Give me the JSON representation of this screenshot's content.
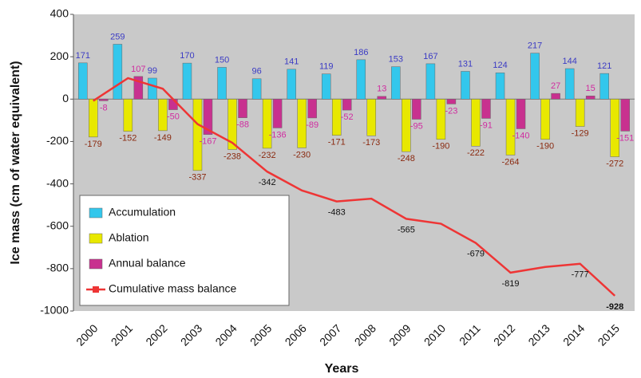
{
  "chart_data": {
    "type": "bar",
    "xlabel": "Years",
    "ylabel": "Ice mass (cm of water equivalent)",
    "categories": [
      "2000",
      "2001",
      "2002",
      "2003",
      "2004",
      "2005",
      "2006",
      "2007",
      "2008",
      "2009",
      "2010",
      "2011",
      "2012",
      "2013",
      "2014",
      "2015"
    ],
    "ylim": [
      -1000,
      400
    ],
    "yticks": [
      -1000,
      -800,
      -600,
      -400,
      -200,
      0,
      200,
      400
    ],
    "legend": "lower left",
    "series": [
      {
        "name": "Accumulation",
        "type": "bar",
        "color": "#33c7ec",
        "values": [
          171,
          259,
          99,
          170,
          150,
          96,
          141,
          119,
          186,
          153,
          167,
          131,
          124,
          217,
          144,
          121
        ]
      },
      {
        "name": "Ablation",
        "type": "bar",
        "color": "#e8e800",
        "values": [
          -179,
          -152,
          -149,
          -337,
          -238,
          -232,
          -230,
          -171,
          -173,
          -248,
          -190,
          -222,
          -264,
          -190,
          -129,
          -272
        ]
      },
      {
        "name": "Annual balance",
        "type": "bar",
        "color": "#c8318f",
        "values": [
          -8,
          107,
          -50,
          -167,
          -88,
          -136,
          -89,
          -52,
          13,
          -95,
          -23,
          -91,
          -140,
          27,
          15,
          -151
        ]
      },
      {
        "name": "Cumulative mass balance",
        "type": "line",
        "color": "#ee3535",
        "values": [
          -8,
          99,
          49,
          -118,
          -206,
          -342,
          -431,
          -483,
          -470,
          -565,
          -588,
          -679,
          -819,
          -792,
          -777,
          -928
        ],
        "value_labels": [
          null,
          null,
          null,
          null,
          null,
          "-342",
          null,
          "-483",
          null,
          "-565",
          null,
          "-679",
          "-819",
          null,
          "-777",
          "-928"
        ]
      }
    ]
  }
}
